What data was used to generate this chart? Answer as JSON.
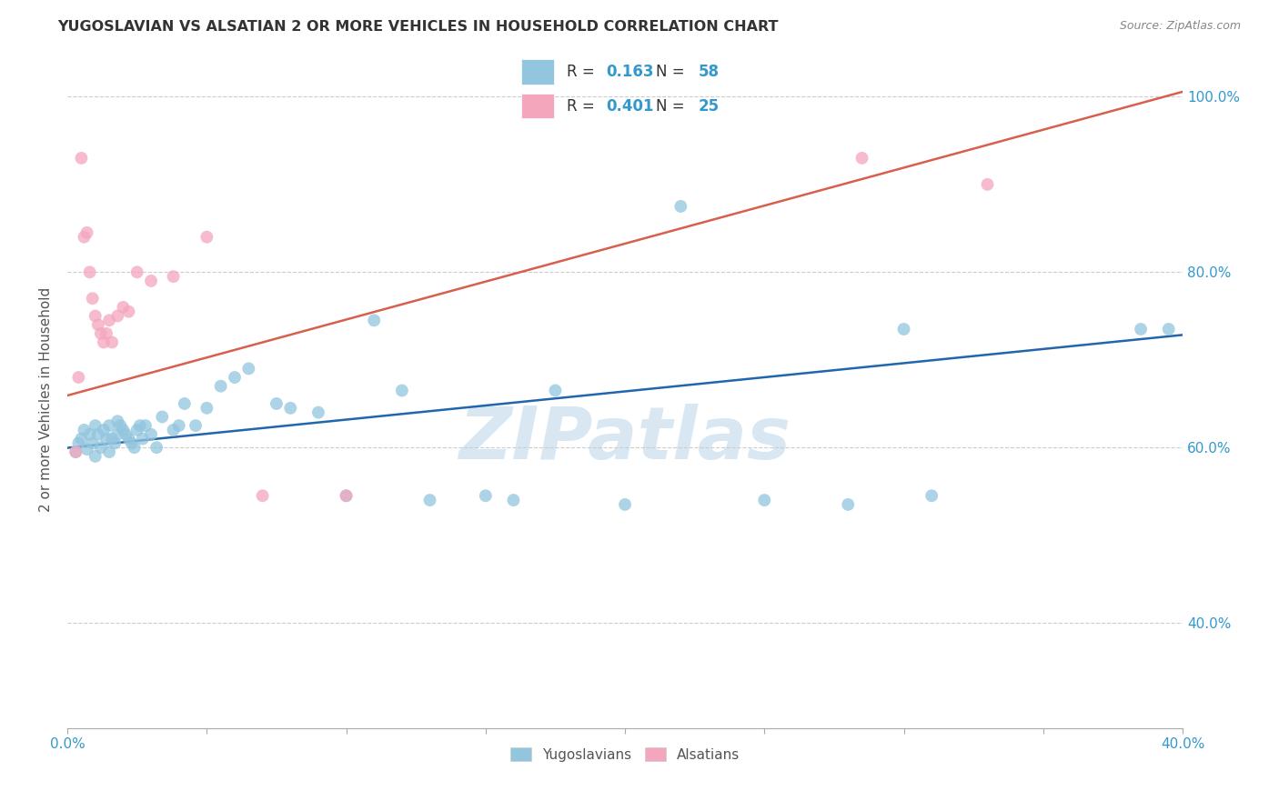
{
  "title": "YUGOSLAVIAN VS ALSATIAN 2 OR MORE VEHICLES IN HOUSEHOLD CORRELATION CHART",
  "source": "Source: ZipAtlas.com",
  "ylabel": "2 or more Vehicles in Household",
  "xlim": [
    0.0,
    0.4
  ],
  "ylim": [
    0.28,
    1.03
  ],
  "yticks": [
    0.4,
    0.6,
    0.8,
    1.0
  ],
  "ytick_labels": [
    "40.0%",
    "60.0%",
    "80.0%",
    "100.0%"
  ],
  "xticks": [
    0.0,
    0.05,
    0.1,
    0.15,
    0.2,
    0.25,
    0.3,
    0.35,
    0.4
  ],
  "blue_color": "#92c5de",
  "pink_color": "#f4a6bd",
  "blue_line_color": "#2166ac",
  "pink_line_color": "#d6604d",
  "watermark": "ZIPatlas",
  "yug_r": "0.163",
  "yug_n": "58",
  "als_r": "0.401",
  "als_n": "25",
  "yug_scatter_x": [
    0.003,
    0.004,
    0.005,
    0.006,
    0.007,
    0.008,
    0.009,
    0.01,
    0.01,
    0.011,
    0.012,
    0.013,
    0.014,
    0.015,
    0.015,
    0.016,
    0.017,
    0.018,
    0.018,
    0.019,
    0.02,
    0.021,
    0.022,
    0.023,
    0.024,
    0.025,
    0.026,
    0.027,
    0.028,
    0.03,
    0.032,
    0.034,
    0.038,
    0.04,
    0.042,
    0.046,
    0.05,
    0.055,
    0.06,
    0.065,
    0.075,
    0.08,
    0.09,
    0.1,
    0.11,
    0.12,
    0.13,
    0.15,
    0.16,
    0.175,
    0.2,
    0.22,
    0.25,
    0.28,
    0.3,
    0.31,
    0.385,
    0.395
  ],
  "yug_scatter_y": [
    0.595,
    0.605,
    0.61,
    0.62,
    0.598,
    0.615,
    0.605,
    0.625,
    0.59,
    0.615,
    0.6,
    0.62,
    0.61,
    0.625,
    0.595,
    0.61,
    0.605,
    0.63,
    0.615,
    0.625,
    0.62,
    0.615,
    0.61,
    0.605,
    0.6,
    0.62,
    0.625,
    0.61,
    0.625,
    0.615,
    0.6,
    0.635,
    0.62,
    0.625,
    0.65,
    0.625,
    0.645,
    0.67,
    0.68,
    0.69,
    0.65,
    0.645,
    0.64,
    0.545,
    0.745,
    0.665,
    0.54,
    0.545,
    0.54,
    0.665,
    0.535,
    0.875,
    0.54,
    0.535,
    0.735,
    0.545,
    0.735,
    0.735
  ],
  "als_scatter_x": [
    0.003,
    0.004,
    0.005,
    0.006,
    0.007,
    0.008,
    0.009,
    0.01,
    0.011,
    0.012,
    0.013,
    0.014,
    0.015,
    0.016,
    0.018,
    0.02,
    0.022,
    0.025,
    0.03,
    0.038,
    0.05,
    0.07,
    0.1,
    0.285,
    0.33
  ],
  "als_scatter_y": [
    0.595,
    0.68,
    0.93,
    0.84,
    0.845,
    0.8,
    0.77,
    0.75,
    0.74,
    0.73,
    0.72,
    0.73,
    0.745,
    0.72,
    0.75,
    0.76,
    0.755,
    0.8,
    0.79,
    0.795,
    0.84,
    0.545,
    0.545,
    0.93,
    0.9
  ],
  "yug_line_x": [
    -0.005,
    0.405
  ],
  "yug_line_y": [
    0.598,
    0.73
  ],
  "als_line_x": [
    -0.005,
    0.405
  ],
  "als_line_y": [
    0.655,
    1.01
  ]
}
